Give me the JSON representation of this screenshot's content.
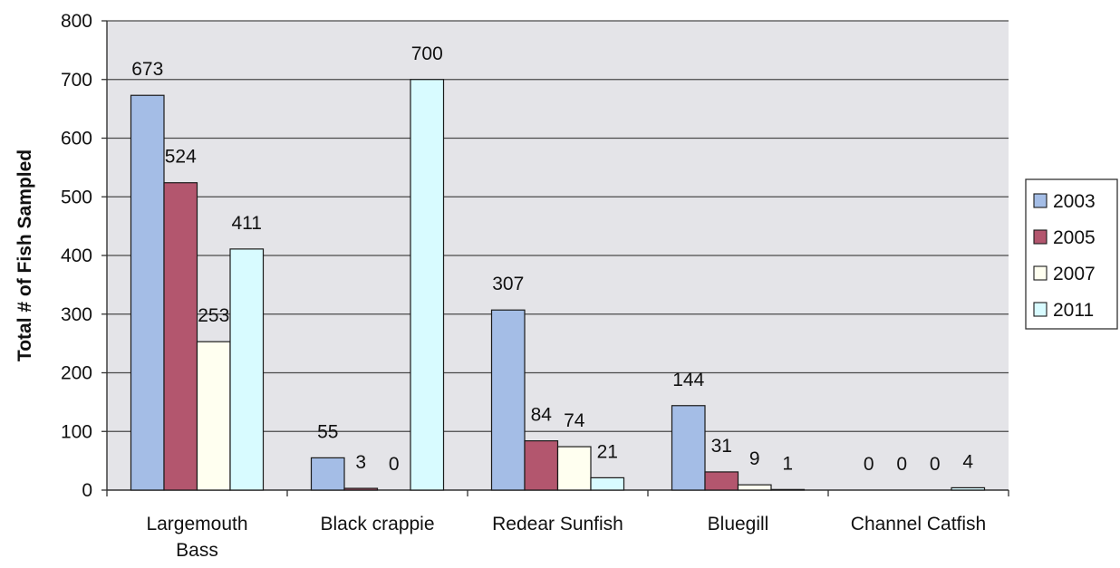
{
  "chart_data": {
    "type": "bar",
    "title": "",
    "xlabel": "",
    "ylabel": "Total # of Fish Sampled",
    "ylim": [
      0,
      800
    ],
    "yticks": [
      0,
      100,
      200,
      300,
      400,
      500,
      600,
      700,
      800
    ],
    "grid": true,
    "legend_position": "right",
    "categories": [
      "Largemouth Bass",
      "Black crappie",
      "Redear Sunfish",
      "Bluegill",
      "Channel Catfish"
    ],
    "category_lines": [
      [
        "Largemouth",
        "Bass"
      ],
      [
        "Black crappie"
      ],
      [
        "Redear Sunfish"
      ],
      [
        "Bluegill"
      ],
      [
        "Channel Catfish"
      ]
    ],
    "series": [
      {
        "name": "2003",
        "values": [
          673,
          55,
          307,
          144,
          0
        ],
        "color": "#a4bde6"
      },
      {
        "name": "2005",
        "values": [
          524,
          3,
          84,
          31,
          0
        ],
        "color": "#b3566e"
      },
      {
        "name": "2007",
        "values": [
          253,
          0,
          74,
          9,
          0
        ],
        "color": "#fffff0"
      },
      {
        "name": "2011",
        "values": [
          411,
          700,
          21,
          1,
          4
        ],
        "color": "#d8fbff"
      }
    ],
    "plot_background": "#e4e4e8"
  }
}
